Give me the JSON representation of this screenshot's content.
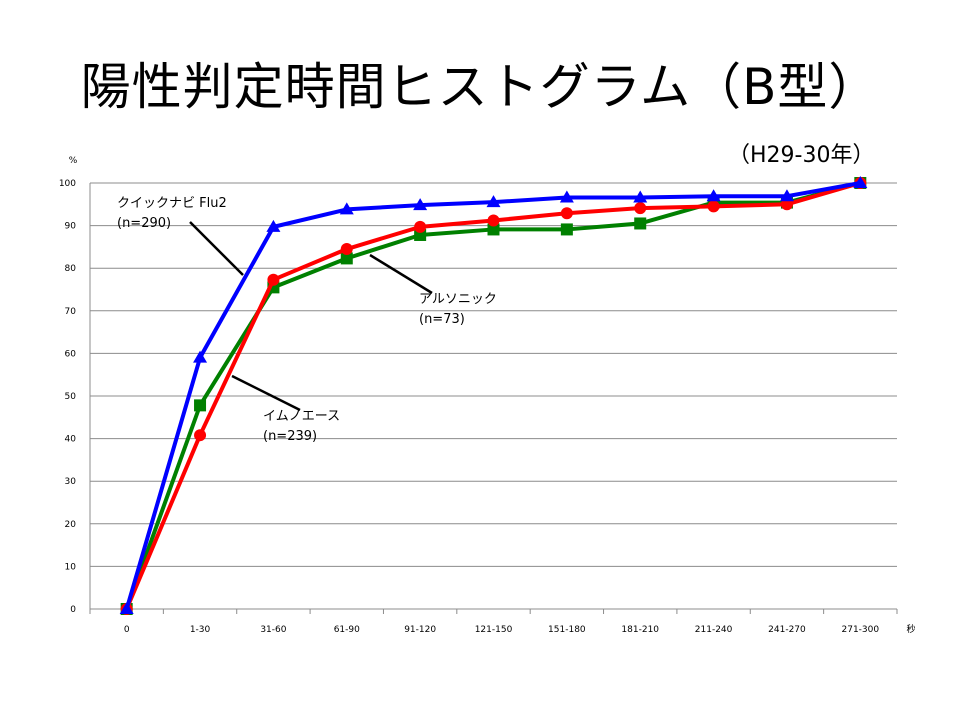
{
  "slide": {
    "title": "陽性判定時間ヒストグラム（B型）",
    "subtitle": "（H29-30年）"
  },
  "chart_data": {
    "type": "line",
    "title": "陽性判定時間ヒストグラム（B型）",
    "subtitle": "（H29-30年）",
    "x_unit": "秒",
    "y_unit": "%",
    "categories": [
      "0",
      "1-30",
      "31-60",
      "61-90",
      "91-120",
      "121-150",
      "151-180",
      "181-210",
      "211-240",
      "241-270",
      "271-300"
    ],
    "ylim": [
      0,
      100
    ],
    "yticks": [
      0,
      10,
      20,
      30,
      40,
      50,
      60,
      70,
      80,
      90,
      100
    ],
    "grid": true,
    "legend": "none",
    "series": [
      {
        "name": "クイックナビ Flu2",
        "values": [
          0,
          59,
          89.7,
          93.8,
          94.8,
          95.5,
          96.6,
          96.6,
          96.9,
          96.9,
          100
        ],
        "color": "#0000ff",
        "marker": "triangle"
      },
      {
        "name": "アルソニック",
        "values": [
          0,
          40.8,
          77.3,
          84.5,
          89.7,
          91.2,
          92.9,
          94.1,
          94.5,
          95,
          100
        ],
        "color": "#ff0000",
        "marker": "circle"
      },
      {
        "name": "イムノエース",
        "values": [
          0,
          47.8,
          75.5,
          82.3,
          87.8,
          89.1,
          89.1,
          90.5,
          95.4,
          95.4,
          100
        ],
        "color": "#008000",
        "marker": "square"
      }
    ],
    "annotations": [
      {
        "series": "クイックナビ Flu2",
        "lines": [
          "クイックナビ Flu2",
          "(n=290)"
        ]
      },
      {
        "series": "アルソニック",
        "lines": [
          "アルソニック",
          "(n=73)"
        ]
      },
      {
        "series": "イムノエース",
        "lines": [
          "イムノエース",
          "(n=239)"
        ]
      }
    ]
  }
}
